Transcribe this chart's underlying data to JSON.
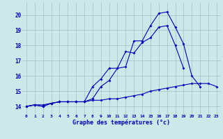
{
  "xlabel": "Graphe des températures (°c)",
  "x": [
    0,
    1,
    2,
    3,
    4,
    5,
    6,
    7,
    8,
    9,
    10,
    11,
    12,
    13,
    14,
    15,
    16,
    17,
    18,
    19,
    20,
    21,
    22,
    23
  ],
  "line1": [
    14.0,
    14.1,
    14.0,
    14.2,
    14.3,
    14.3,
    14.3,
    14.3,
    14.5,
    15.3,
    15.7,
    16.5,
    16.6,
    18.3,
    18.3,
    19.3,
    20.1,
    20.2,
    19.2,
    18.1,
    16.0,
    15.3,
    null,
    null
  ],
  "line2": [
    14.0,
    14.1,
    14.0,
    14.2,
    14.3,
    14.3,
    14.3,
    14.3,
    14.4,
    14.4,
    14.5,
    14.5,
    14.6,
    14.7,
    14.8,
    15.0,
    15.1,
    15.2,
    15.3,
    15.4,
    15.5,
    15.5,
    15.5,
    15.3
  ],
  "line3": [
    14.0,
    14.1,
    14.1,
    14.2,
    14.3,
    14.3,
    14.3,
    14.3,
    15.3,
    15.8,
    16.5,
    16.5,
    17.6,
    17.5,
    18.2,
    18.5,
    19.2,
    19.3,
    18.0,
    16.5,
    null,
    null,
    null,
    null
  ],
  "ylim": [
    13.5,
    20.8
  ],
  "xlim": [
    -0.5,
    23.5
  ],
  "yticks": [
    14,
    15,
    16,
    17,
    18,
    19,
    20
  ],
  "xticks": [
    0,
    1,
    2,
    3,
    4,
    5,
    6,
    7,
    8,
    9,
    10,
    11,
    12,
    13,
    14,
    15,
    16,
    17,
    18,
    19,
    20,
    21,
    22,
    23
  ],
  "bg_color": "#cce8e8",
  "line_color": "#0000bb",
  "grid_color": "#a8c8c8",
  "marker": "D",
  "marker_size": 2,
  "line_width": 0.8
}
